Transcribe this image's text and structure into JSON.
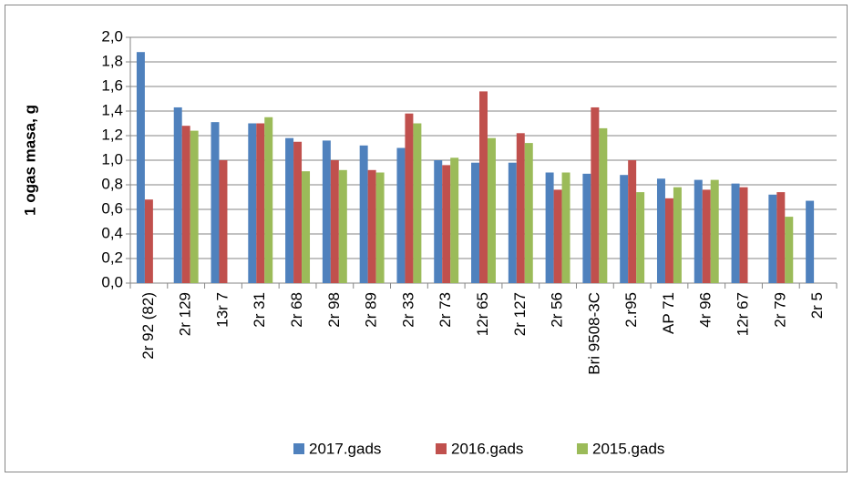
{
  "chart_data": {
    "type": "bar",
    "y_label": "1 ogas masa, g",
    "categories": [
      "2r 92 (82)",
      "2r 129",
      "13r 7",
      "2r 31",
      "2r 68",
      "2r 98",
      "2r 89",
      "2r 33",
      "2r 73",
      "12r 65",
      "2r 127",
      "2r 56",
      "Bri 9508-3C",
      "2.r95",
      "AP 71",
      "4r 96",
      "12r 67",
      "2r 79",
      "2r 5"
    ],
    "series": [
      {
        "name": "2017.gads",
        "color": "#4f81bd",
        "values": [
          1.88,
          1.43,
          1.31,
          1.3,
          1.18,
          1.16,
          1.12,
          1.1,
          1.0,
          0.98,
          0.98,
          0.9,
          0.89,
          0.88,
          0.85,
          0.84,
          0.81,
          0.72,
          0.67
        ]
      },
      {
        "name": "2016.gads",
        "color": "#c0504d",
        "values": [
          0.68,
          1.28,
          1.0,
          1.3,
          1.15,
          1.0,
          0.92,
          1.38,
          0.96,
          1.56,
          1.22,
          0.76,
          1.43,
          1.0,
          0.69,
          0.76,
          0.78,
          0.74,
          null
        ]
      },
      {
        "name": "2015.gads",
        "color": "#9bbb59",
        "values": [
          null,
          1.24,
          null,
          1.35,
          0.91,
          0.92,
          0.9,
          1.3,
          1.02,
          1.18,
          1.14,
          0.9,
          1.26,
          0.74,
          0.78,
          0.84,
          null,
          0.54,
          null
        ]
      }
    ],
    "ylim": [
      0,
      2.0
    ],
    "yticks": [
      {
        "value": 0,
        "label": "0,0"
      },
      {
        "value": 0.2,
        "label": "0,2"
      },
      {
        "value": 0.4,
        "label": "0,4"
      },
      {
        "value": 0.6,
        "label": "0,6"
      },
      {
        "value": 0.8,
        "label": "0,8"
      },
      {
        "value": 1.0,
        "label": "1,0"
      },
      {
        "value": 1.2,
        "label": "1,2"
      },
      {
        "value": 1.4,
        "label": "1,4"
      },
      {
        "value": 1.6,
        "label": "1,6"
      },
      {
        "value": 1.8,
        "label": "1,8"
      },
      {
        "value": 2.0,
        "label": "2,0"
      }
    ],
    "grid": true,
    "legend": "bottom"
  }
}
